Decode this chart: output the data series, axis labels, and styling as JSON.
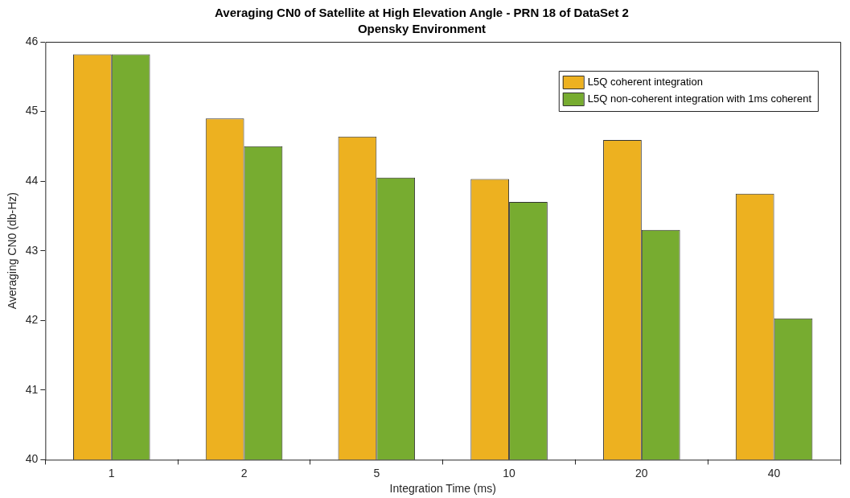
{
  "chart_data": {
    "type": "bar",
    "title": "Averaging CN0 of Satellite at High Elevation Angle - PRN 18 of DataSet 2",
    "subtitle": "Opensky Environment",
    "xlabel": "Integration Time (ms)",
    "ylabel": "Averaging CN0 (db-Hz)",
    "categories": [
      "1",
      "2",
      "5",
      "10",
      "20",
      "40"
    ],
    "series": [
      {
        "name": "L5Q coherent integration",
        "color": "#edb120",
        "values": [
          45.82,
          44.9,
          44.64,
          44.03,
          44.59,
          43.82
        ]
      },
      {
        "name": "L5Q non-coherent integration with 1ms coherent",
        "color": "#77ac30",
        "values": [
          45.82,
          44.5,
          44.05,
          43.7,
          43.3,
          42.03
        ]
      }
    ],
    "ylim": [
      40,
      46
    ],
    "yticks": [
      40,
      41,
      42,
      43,
      44,
      45,
      46
    ],
    "grid": false,
    "legend": "top right"
  }
}
